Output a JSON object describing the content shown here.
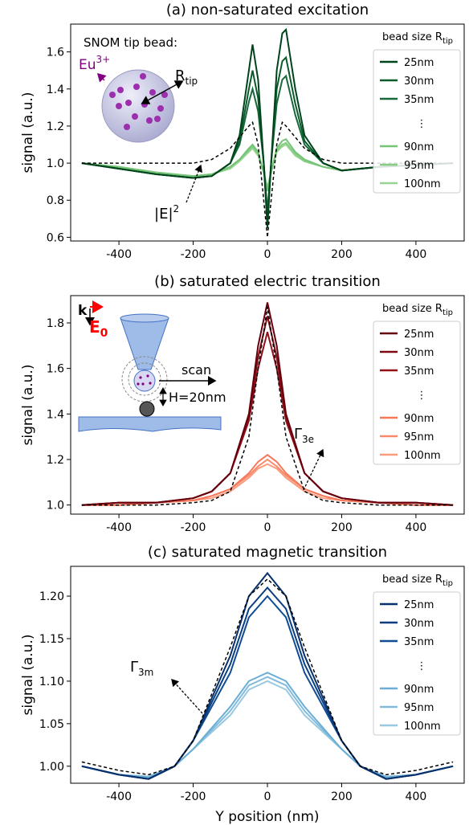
{
  "chart_data": [
    {
      "type": "line",
      "title": "(a) non-saturated excitation",
      "ylabel": "signal (a.u.)",
      "x": [
        -500,
        -400,
        -300,
        -200,
        -150,
        -100,
        -75,
        -50,
        -40,
        -25,
        -10,
        0,
        10,
        25,
        40,
        50,
        75,
        100,
        150,
        200,
        300,
        400,
        500
      ],
      "xlim": [
        -530,
        530
      ],
      "xticks": [
        -400,
        -200,
        0,
        200,
        400
      ],
      "ylim": [
        0.58,
        1.75
      ],
      "yticks": [
        0.6,
        0.8,
        {
          "value": 1,
          "label": "1.0"
        },
        1.2,
        1.4,
        1.6
      ],
      "legend_title": {
        "text": "bead size R",
        "sub": "tip"
      },
      "legend_gap": "⋮",
      "series": [
        {
          "name": "25nm",
          "color": "#00441b",
          "values": [
            1.0,
            0.97,
            0.94,
            0.92,
            0.93,
            1.0,
            1.15,
            1.5,
            1.64,
            1.45,
            1.0,
            0.65,
            1.0,
            1.5,
            1.7,
            1.72,
            1.4,
            1.15,
            1.0,
            0.96,
            0.98,
            0.99,
            1.0
          ]
        },
        {
          "name": "30nm",
          "color": "#0a5a2a",
          "values": [
            1.0,
            0.97,
            0.94,
            0.92,
            0.93,
            1.0,
            1.12,
            1.4,
            1.5,
            1.35,
            1.0,
            0.7,
            1.0,
            1.4,
            1.55,
            1.57,
            1.32,
            1.12,
            1.0,
            0.96,
            0.98,
            0.99,
            1.0
          ]
        },
        {
          "name": "35nm",
          "color": "#16693a",
          "values": [
            1.0,
            0.97,
            0.94,
            0.92,
            0.93,
            1.0,
            1.1,
            1.33,
            1.4,
            1.28,
            1.0,
            0.74,
            1.0,
            1.32,
            1.45,
            1.47,
            1.26,
            1.1,
            1.0,
            0.96,
            0.98,
            0.99,
            1.0
          ]
        },
        {
          "name": "90nm",
          "color": "#74c476",
          "values": [
            1.0,
            0.98,
            0.95,
            0.93,
            0.94,
            0.98,
            1.02,
            1.08,
            1.1,
            1.06,
            0.95,
            0.85,
            0.95,
            1.08,
            1.12,
            1.13,
            1.06,
            1.02,
            0.98,
            0.96,
            0.98,
            0.99,
            1.0
          ]
        },
        {
          "name": "95nm",
          "color": "#86cc84",
          "values": [
            1.0,
            0.98,
            0.95,
            0.93,
            0.94,
            0.98,
            1.02,
            1.07,
            1.09,
            1.05,
            0.95,
            0.86,
            0.95,
            1.07,
            1.1,
            1.11,
            1.05,
            1.01,
            0.98,
            0.96,
            0.98,
            0.99,
            1.0
          ]
        },
        {
          "name": "100nm",
          "color": "#98d594",
          "values": [
            1.0,
            0.98,
            0.95,
            0.93,
            0.94,
            0.97,
            1.01,
            1.06,
            1.08,
            1.04,
            0.95,
            0.87,
            0.95,
            1.06,
            1.09,
            1.1,
            1.04,
            1.01,
            0.98,
            0.96,
            0.98,
            0.99,
            1.0
          ]
        }
      ],
      "reference": {
        "color": "#000000",
        "values": [
          1.0,
          1.0,
          1.0,
          1.0,
          1.02,
          1.08,
          1.14,
          1.2,
          1.22,
          1.1,
          0.8,
          0.6,
          0.8,
          1.1,
          1.22,
          1.2,
          1.14,
          1.08,
          1.02,
          1.0,
          1.0,
          1.0,
          1.0
        ],
        "label": {
          "text": "|E|",
          "sup": "2"
        }
      },
      "inset": {
        "title": "SNOM tip bead:",
        "ion": {
          "text": "Eu",
          "sup": "3+"
        },
        "radius": {
          "text": "R",
          "sub": "tip"
        }
      }
    },
    {
      "type": "line",
      "title": "(b) saturated electric transition",
      "ylabel": "signal (a.u.)",
      "x": [
        -500,
        -400,
        -300,
        -200,
        -150,
        -100,
        -50,
        -25,
        0,
        25,
        50,
        100,
        150,
        200,
        300,
        400,
        500
      ],
      "xlim": [
        -530,
        530
      ],
      "xticks": [
        -400,
        -200,
        0,
        200,
        400
      ],
      "ylim": [
        0.96,
        1.92
      ],
      "yticks": [
        {
          "value": 1,
          "label": "1.0"
        },
        1.2,
        1.4,
        1.6,
        1.8
      ],
      "legend_title": {
        "text": "bead size R",
        "sub": "tip"
      },
      "legend_gap": "⋮",
      "series": [
        {
          "name": "25nm",
          "color": "#67000d",
          "values": [
            1.0,
            1.01,
            1.01,
            1.03,
            1.06,
            1.14,
            1.4,
            1.7,
            1.89,
            1.7,
            1.4,
            1.14,
            1.06,
            1.03,
            1.01,
            1.01,
            1.0
          ]
        },
        {
          "name": "30nm",
          "color": "#7d0a12",
          "values": [
            1.0,
            1.01,
            1.01,
            1.03,
            1.06,
            1.14,
            1.39,
            1.65,
            1.83,
            1.65,
            1.39,
            1.14,
            1.06,
            1.03,
            1.01,
            1.01,
            1.0
          ]
        },
        {
          "name": "35nm",
          "color": "#930f18",
          "values": [
            1.0,
            1.01,
            1.01,
            1.03,
            1.06,
            1.14,
            1.37,
            1.6,
            1.76,
            1.6,
            1.37,
            1.14,
            1.06,
            1.03,
            1.01,
            1.01,
            1.0
          ]
        },
        {
          "name": "90nm",
          "color": "#f5785a",
          "values": [
            1.0,
            1.0,
            1.01,
            1.02,
            1.04,
            1.07,
            1.14,
            1.19,
            1.22,
            1.19,
            1.14,
            1.07,
            1.04,
            1.02,
            1.01,
            1.0,
            1.0
          ]
        },
        {
          "name": "95nm",
          "color": "#f8896b",
          "values": [
            1.0,
            1.0,
            1.01,
            1.02,
            1.04,
            1.07,
            1.13,
            1.17,
            1.2,
            1.17,
            1.13,
            1.07,
            1.04,
            1.02,
            1.01,
            1.0,
            1.0
          ]
        },
        {
          "name": "100nm",
          "color": "#fa9b7e",
          "values": [
            1.0,
            1.0,
            1.01,
            1.02,
            1.03,
            1.06,
            1.12,
            1.16,
            1.18,
            1.16,
            1.12,
            1.06,
            1.03,
            1.02,
            1.01,
            1.0,
            1.0
          ]
        }
      ],
      "reference": {
        "color": "#000000",
        "values": [
          1.0,
          1.0,
          1.0,
          1.01,
          1.02,
          1.06,
          1.3,
          1.6,
          1.87,
          1.6,
          1.3,
          1.06,
          1.02,
          1.01,
          1.0,
          1.0,
          1.0
        ],
        "label": {
          "text": "Γ",
          "sub": "3e"
        }
      },
      "inset": {
        "k": "k",
        "field": {
          "text": "E",
          "sub": "0"
        },
        "scan": "scan",
        "height": "H=20nm"
      }
    },
    {
      "type": "line",
      "title": "(c) saturated magnetic transition",
      "ylabel": "signal (a.u.)",
      "xlabel": "Y position (nm)",
      "x": [
        -500,
        -400,
        -320,
        -250,
        -200,
        -100,
        -50,
        0,
        50,
        100,
        200,
        250,
        320,
        400,
        500
      ],
      "xlim": [
        -530,
        530
      ],
      "xticks": [
        -400,
        -200,
        0,
        200,
        400
      ],
      "ylim": [
        0.98,
        1.235
      ],
      "yticks": [
        {
          "value": 1,
          "label": "1.00"
        },
        1.05,
        {
          "value": 1.1,
          "label": "1.10"
        },
        1.15,
        {
          "value": 1.2,
          "label": "1.20"
        }
      ],
      "legend_title": {
        "text": "bead size R",
        "sub": "tip"
      },
      "legend_gap": "⋮",
      "series": [
        {
          "name": "25nm",
          "color": "#08306b",
          "values": [
            1.0,
            0.99,
            0.985,
            1.0,
            1.03,
            1.13,
            1.2,
            1.227,
            1.2,
            1.13,
            1.03,
            1.0,
            0.985,
            0.99,
            1.0
          ]
        },
        {
          "name": "30nm",
          "color": "#0b3e80",
          "values": [
            1.0,
            0.99,
            0.985,
            1.0,
            1.03,
            1.12,
            1.185,
            1.21,
            1.185,
            1.12,
            1.03,
            1.0,
            0.985,
            0.99,
            1.0
          ]
        },
        {
          "name": "35nm",
          "color": "#0e4c95",
          "values": [
            1.0,
            0.99,
            0.985,
            1.0,
            1.03,
            1.11,
            1.175,
            1.2,
            1.175,
            1.11,
            1.03,
            1.0,
            0.985,
            0.99,
            1.0
          ]
        },
        {
          "name": "90nm",
          "color": "#6aaed6",
          "values": [
            1.0,
            0.99,
            0.987,
            1.0,
            1.02,
            1.07,
            1.1,
            1.11,
            1.1,
            1.07,
            1.02,
            1.0,
            0.987,
            0.99,
            1.0
          ]
        },
        {
          "name": "95nm",
          "color": "#82bbdb",
          "values": [
            1.0,
            0.99,
            0.987,
            1.0,
            1.02,
            1.065,
            1.095,
            1.105,
            1.095,
            1.065,
            1.02,
            1.0,
            0.987,
            0.99,
            1.0
          ]
        },
        {
          "name": "100nm",
          "color": "#9ac8e0",
          "values": [
            1.0,
            0.99,
            0.988,
            1.0,
            1.02,
            1.06,
            1.09,
            1.1,
            1.09,
            1.06,
            1.02,
            1.0,
            0.988,
            0.99,
            1.0
          ]
        }
      ],
      "reference": {
        "color": "#000000",
        "values": [
          1.005,
          0.995,
          0.99,
          1.0,
          1.03,
          1.14,
          1.2,
          1.22,
          1.2,
          1.14,
          1.03,
          1.0,
          0.99,
          0.995,
          1.005
        ],
        "label": {
          "text": "Γ",
          "sub": "3m"
        }
      }
    }
  ]
}
